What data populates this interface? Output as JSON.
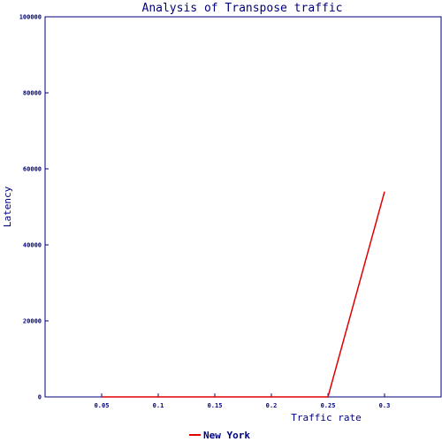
{
  "chart_data": {
    "type": "line",
    "title": "Analysis of Transpose traffic",
    "xlabel": "Traffic rate",
    "ylabel": "Latency",
    "xlim": [
      0,
      0.35
    ],
    "ylim": [
      0,
      100000
    ],
    "x_ticks": [
      0.05,
      0.1,
      0.15,
      0.2,
      0.25,
      0.3
    ],
    "x_tick_labels": [
      "0.05",
      "0.1",
      "0.15",
      "0.2",
      "0.25",
      "0.3"
    ],
    "y_ticks": [
      0,
      20000,
      40000,
      60000,
      80000,
      100000
    ],
    "y_tick_labels": [
      "0",
      "20000",
      "40000",
      "60000",
      "80000",
      "100000"
    ],
    "grid": false,
    "legend_position": "bottom-center",
    "series": [
      {
        "name": "New York",
        "color": "#e00000",
        "x": [
          0.05,
          0.1,
          0.15,
          0.2,
          0.25,
          0.3
        ],
        "y": [
          0,
          0,
          0,
          0,
          0,
          54000
        ]
      }
    ]
  }
}
